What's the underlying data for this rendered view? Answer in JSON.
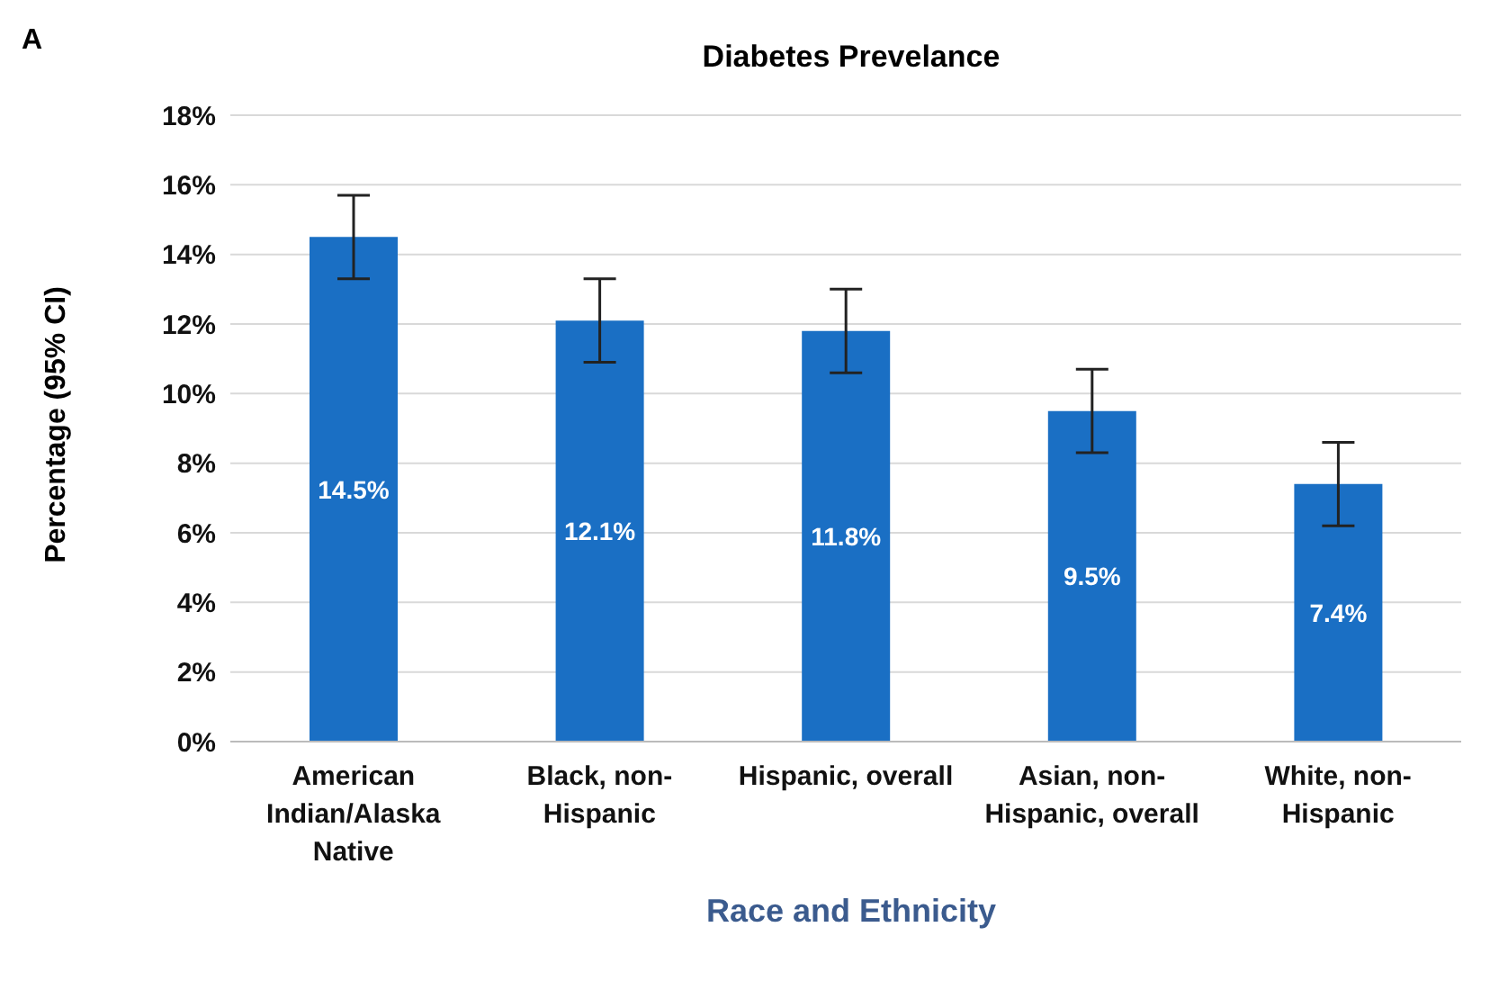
{
  "chart_data": {
    "type": "bar",
    "title": "Diabetes Prevelance",
    "xlabel": "Race and Ethnicity",
    "ylabel": "Percentage (95% CI)",
    "annotations": [
      "A"
    ],
    "categories": [
      "American Indian/Alaska Native",
      "Black, non-Hispanic",
      "Hispanic, overall",
      "Asian, non-Hispanic, overall",
      "White, non-Hispanic"
    ],
    "values": [
      14.5,
      12.1,
      11.8,
      9.5,
      7.4
    ],
    "errors": [
      [
        13.3,
        15.7
      ],
      [
        10.9,
        13.3
      ],
      [
        10.6,
        13.0
      ],
      [
        8.3,
        10.7
      ],
      [
        6.2,
        8.6
      ]
    ],
    "value_labels": [
      "14.5%",
      "12.1%",
      "11.8%",
      "9.5%",
      "7.4%"
    ],
    "color": "#1a6fc4",
    "ylim": [
      0,
      18
    ],
    "yticks": [
      {
        "value": 0,
        "label": "0%"
      },
      {
        "value": 2,
        "label": "2%"
      },
      {
        "value": 4,
        "label": "4%"
      },
      {
        "value": 6,
        "label": "6%"
      },
      {
        "value": 8,
        "label": "8%"
      },
      {
        "value": 10,
        "label": "10%"
      },
      {
        "value": 12,
        "label": "12%"
      },
      {
        "value": 14,
        "label": "14%"
      },
      {
        "value": 16,
        "label": "16%"
      },
      {
        "value": 18,
        "label": "18%"
      }
    ],
    "grid": "y"
  }
}
